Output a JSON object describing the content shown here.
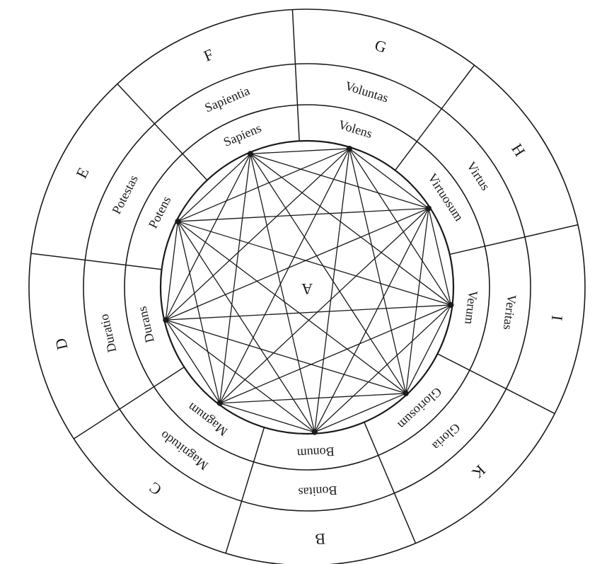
{
  "center_label": "A",
  "segments": [
    {
      "letter": "G",
      "noun": "Voluntas",
      "adjective": "Volens"
    },
    {
      "letter": "H",
      "noun": "Virtus",
      "adjective": "Virtuosum"
    },
    {
      "letter": "I",
      "noun": "Veritas",
      "adjective": "Verum"
    },
    {
      "letter": "K",
      "noun": "Gloria",
      "adjective": "Gloriosum"
    },
    {
      "letter": "B",
      "noun": "Bonitas",
      "adjective": "Bonum"
    },
    {
      "letter": "C",
      "noun": "Magnitudo",
      "adjective": "Magnum"
    },
    {
      "letter": "D",
      "noun": "Duratio",
      "adjective": "Durans"
    },
    {
      "letter": "E",
      "noun": "Potestas",
      "adjective": "Potens"
    },
    {
      "letter": "F",
      "noun": "Sapientia",
      "adjective": "Sapiens"
    }
  ],
  "colors": {
    "ink": "#1a1a1a",
    "paper": "#ffffff"
  }
}
